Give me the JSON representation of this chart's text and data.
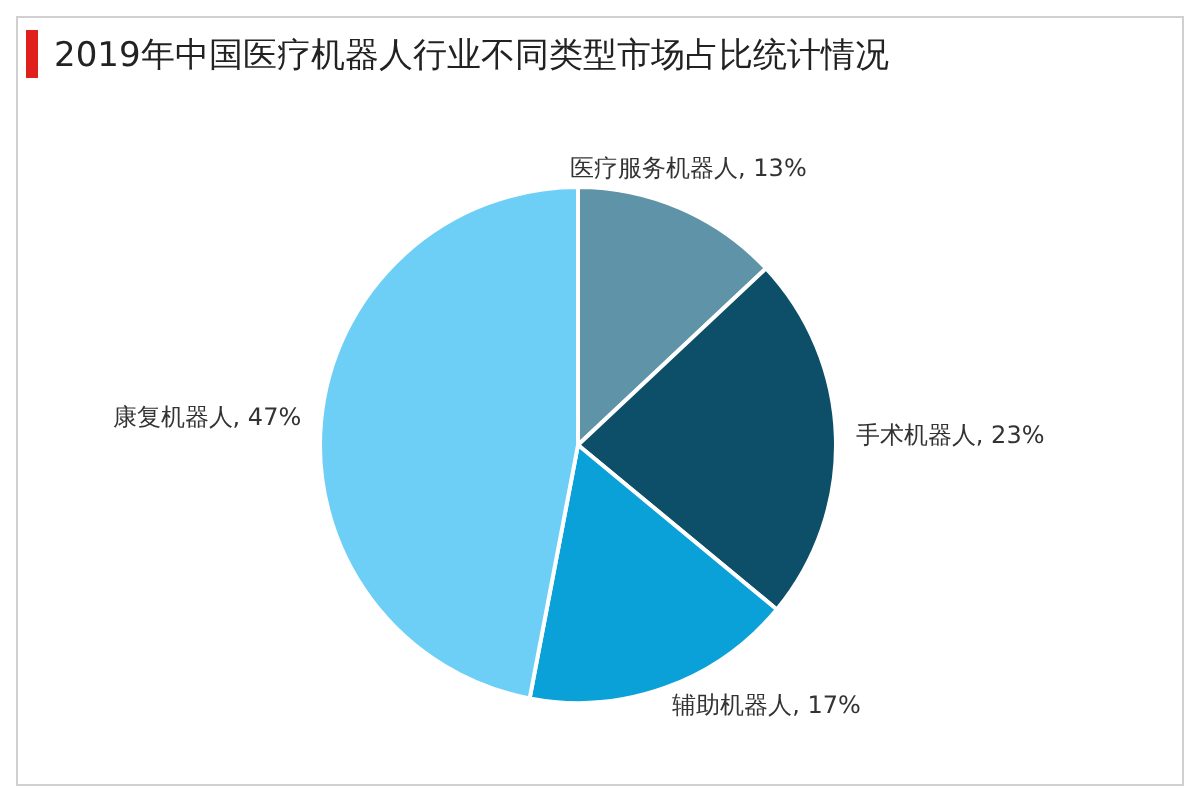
{
  "chart_data": {
    "type": "pie",
    "title": "2019年中国医疗机器人行业不同类型市场占比统计情况",
    "categories": [
      "医疗服务机器人",
      "手术机器人",
      "辅助机器人",
      "康复机器人"
    ],
    "values": [
      13,
      23,
      17,
      47
    ],
    "value_labels": [
      "13%",
      "23%",
      "17%",
      "47%"
    ],
    "colors": [
      "#5f93a8",
      "#0d4f68",
      "#0aa0d8",
      "#6ecff6"
    ],
    "legend": false
  }
}
